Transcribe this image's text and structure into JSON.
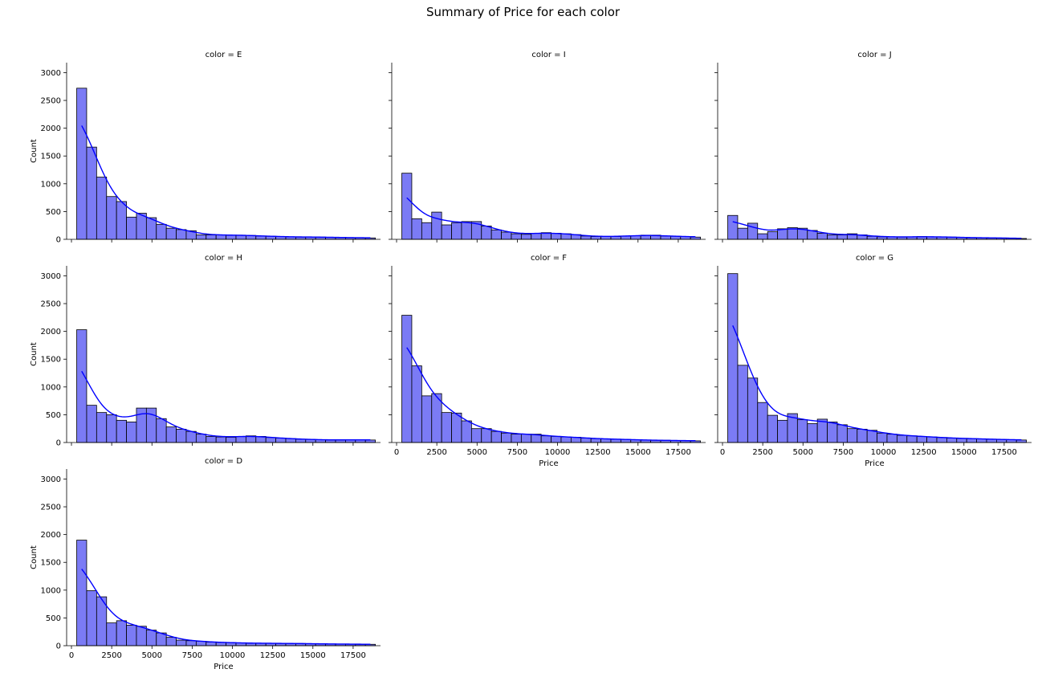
{
  "title": "Summary of Price for each color",
  "styles": {
    "bar_fill": "#7b7bf5",
    "bar_stroke": "#000000",
    "kde_color": "#0000ff"
  },
  "chart_data": {
    "type": "histogram",
    "title": "Summary of Price for each color",
    "xlabel": "Price",
    "ylabel": "Count",
    "xlim": [
      -300,
      19200
    ],
    "ylim": [
      0,
      3180
    ],
    "x_ticks": [
      0,
      2500,
      5000,
      7500,
      10000,
      12500,
      15000,
      17500
    ],
    "y_ticks": [
      0,
      500,
      1000,
      1500,
      2000,
      2500,
      3000
    ],
    "bins": {
      "start": 326,
      "width": 618.5,
      "count": 30
    },
    "panels": [
      {
        "title": "color = E",
        "counts": [
          2720,
          1660,
          1120,
          770,
          680,
          400,
          470,
          390,
          270,
          200,
          175,
          155,
          80,
          80,
          80,
          75,
          75,
          70,
          60,
          55,
          50,
          45,
          40,
          45,
          40,
          35,
          35,
          30,
          30,
          25
        ]
      },
      {
        "title": "color = I",
        "counts": [
          1190,
          370,
          300,
          490,
          260,
          300,
          320,
          320,
          240,
          170,
          130,
          100,
          90,
          110,
          120,
          110,
          100,
          85,
          60,
          50,
          50,
          50,
          60,
          65,
          75,
          75,
          60,
          55,
          50,
          40
        ]
      },
      {
        "title": "color = J",
        "counts": [
          430,
          200,
          290,
          100,
          140,
          190,
          210,
          200,
          160,
          110,
          80,
          80,
          100,
          80,
          55,
          45,
          45,
          40,
          45,
          50,
          45,
          45,
          40,
          35,
          30,
          30,
          25,
          25,
          20,
          15
        ]
      },
      {
        "title": "color = H",
        "counts": [
          2030,
          670,
          540,
          500,
          400,
          370,
          620,
          620,
          430,
          280,
          240,
          200,
          150,
          110,
          100,
          95,
          110,
          120,
          110,
          90,
          80,
          70,
          60,
          55,
          50,
          45,
          45,
          50,
          50,
          45
        ]
      },
      {
        "title": "color = F",
        "counts": [
          2290,
          1380,
          840,
          880,
          540,
          530,
          390,
          250,
          250,
          200,
          170,
          150,
          150,
          150,
          120,
          110,
          100,
          95,
          80,
          70,
          65,
          60,
          55,
          50,
          45,
          40,
          40,
          35,
          35,
          30
        ]
      },
      {
        "title": "color = G",
        "counts": [
          3040,
          1390,
          1160,
          720,
          490,
          400,
          520,
          410,
          340,
          420,
          370,
          320,
          250,
          240,
          220,
          170,
          150,
          130,
          120,
          110,
          100,
          90,
          80,
          75,
          70,
          65,
          60,
          55,
          50,
          45
        ]
      },
      {
        "title": "color = D",
        "counts": [
          1900,
          990,
          880,
          410,
          450,
          370,
          350,
          280,
          230,
          150,
          100,
          90,
          80,
          65,
          60,
          55,
          50,
          45,
          45,
          45,
          40,
          40,
          40,
          35,
          35,
          30,
          30,
          30,
          25,
          25
        ]
      }
    ]
  }
}
